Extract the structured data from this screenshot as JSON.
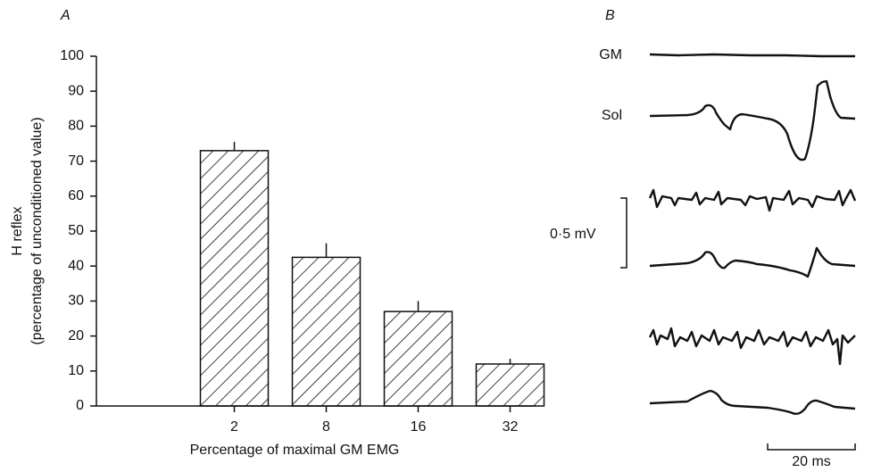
{
  "chart_data": {
    "type": "bar",
    "panel_labels": [
      "A",
      "B"
    ],
    "ylabel": [
      "H reflex",
      "(percentage of unconditioned value)"
    ],
    "xlabel": "Percentage of maximal GM EMG",
    "categories": [
      "2",
      "8",
      "16",
      "32"
    ],
    "values": [
      73,
      42.5,
      27,
      12
    ],
    "errors": [
      2.5,
      4,
      3,
      1.5
    ],
    "ylim": [
      0,
      100
    ],
    "yticks": [
      0,
      10,
      20,
      30,
      40,
      50,
      60,
      70,
      80,
      90,
      100
    ],
    "annotations": [
      "GM",
      "Sol",
      "0·5 mV",
      "20 ms"
    ]
  }
}
